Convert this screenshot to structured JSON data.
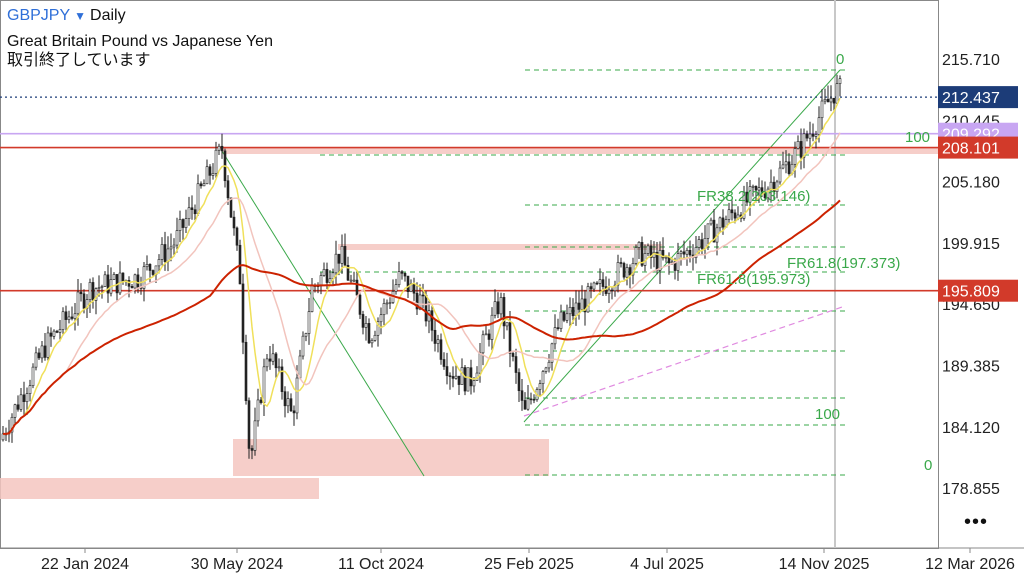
{
  "header": {
    "symbol": "GBPJPY",
    "timeframe": "Daily",
    "description": "Great Britain Pound vs Japanese Yen",
    "status": "取引終了しています"
  },
  "colors": {
    "candle": "#222222",
    "ma_fast": "#f0e05a",
    "ma_mid": "#f2c4bd",
    "ma_slow": "#cc2200",
    "fib": "#3aa84a",
    "zone": "#f4c6c0",
    "trend_pink": "#e08be0",
    "level_red": "#d23a2a",
    "level_lilac": "#c8a6f2",
    "last_price_tag": "#1c3c78"
  },
  "chart_data": {
    "type": "candlestick",
    "y_axis": {
      "ticks": [
        "215.710",
        "210.445",
        "205.180",
        "199.915",
        "194.650",
        "189.385",
        "184.120",
        "178.855"
      ]
    },
    "x_axis": {
      "ticks": [
        "22 Jan 2024",
        "30 May 2024",
        "11 Oct 2024",
        "25 Feb 2025",
        "4 Jul 2025",
        "14 Nov 2025",
        "12 Mar 2026"
      ]
    },
    "price_tags": [
      {
        "value": "212.437",
        "color": "#1c3c78",
        "text_color": "#ffffff"
      },
      {
        "value": "209.292",
        "color": "#c8a6f2",
        "text_color": "#ffffff"
      },
      {
        "value": "208.101",
        "color": "#d23a2a",
        "text_color": "#ffffff"
      },
      {
        "value": "195.809",
        "color": "#d23a2a",
        "text_color": "#ffffff"
      }
    ],
    "horizontal_levels": [
      {
        "value": 212.437,
        "style": "dotted",
        "color": "#1c3c78"
      },
      {
        "value": 209.292,
        "style": "solid",
        "color": "#c8a6f2"
      },
      {
        "value": 208.101,
        "style": "solid",
        "color": "#d23a2a"
      },
      {
        "value": 195.809,
        "style": "solid",
        "color": "#d23a2a"
      }
    ],
    "fib_labels": [
      "0",
      "100",
      "FR38.2(203.146)",
      "FR61.8(197.373)",
      "FR61.8(195.973)",
      "100",
      "0"
    ]
  }
}
